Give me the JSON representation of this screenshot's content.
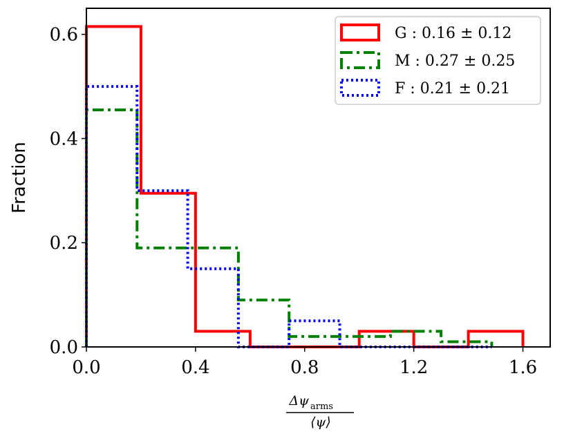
{
  "chart_data": {
    "type": "histogram",
    "xlabel_numerator": "Δψ",
    "xlabel_subscript": "arms",
    "xlabel_denominator": "⟨ψ⟩",
    "ylabel": "Fraction",
    "xlim": [
      0.0,
      1.7
    ],
    "ylim": [
      0.0,
      0.65
    ],
    "xticks": [
      "0.0",
      "0.4",
      "0.8",
      "1.2",
      "1.6"
    ],
    "xtick_values": [
      0.0,
      0.4,
      0.8,
      1.2,
      1.6
    ],
    "yticks": [
      "0.0",
      "0.2",
      "0.4",
      "0.6"
    ],
    "ytick_values": [
      0.0,
      0.2,
      0.4,
      0.6
    ],
    "legend_position": "top-right",
    "series": [
      {
        "name": "G : 0.16 ± 0.12",
        "color": "#ff0000",
        "linestyle": "solid",
        "bin_edges": [
          0.0,
          0.2,
          0.4,
          0.6,
          0.8,
          1.0,
          1.2,
          1.4,
          1.6
        ],
        "values": [
          0.615,
          0.295,
          0.03,
          0.0,
          0.0,
          0.03,
          0.0,
          0.03
        ]
      },
      {
        "name": "M : 0.27 ± 0.25",
        "color": "#008000",
        "linestyle": "dashdot",
        "bin_edges": [
          0.0,
          0.1857,
          0.3714,
          0.5571,
          0.7429,
          0.9286,
          1.1143,
          1.3,
          1.4857
        ],
        "values": [
          0.455,
          0.19,
          0.19,
          0.09,
          0.02,
          0.02,
          0.03,
          0.01
        ]
      },
      {
        "name": "F : 0.21 ± 0.21",
        "color": "#0000ff",
        "linestyle": "dotted",
        "bin_edges": [
          0.0,
          0.1857,
          0.3714,
          0.5571,
          0.7429,
          0.9286,
          1.1143,
          1.3,
          1.4857
        ],
        "values": [
          0.5,
          0.3,
          0.15,
          0.0,
          0.05,
          0.0,
          0.0,
          0.0
        ]
      }
    ]
  }
}
